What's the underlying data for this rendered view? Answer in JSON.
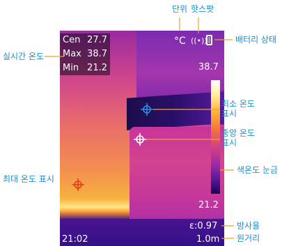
{
  "callouts": {
    "unit": "단위",
    "hotspot": "핫스팟",
    "battery": "배터리 상태",
    "realtime_temp": "실시간 온도",
    "min_temp_display": "최소 온도\n표시",
    "center_temp_display": "중앙 온도\n표시",
    "max_temp_display": "최대 온도 표시",
    "color_scale": "색온도 눈금",
    "emissivity": "방사율",
    "distance": "원거리"
  },
  "screen": {
    "readout": [
      {
        "label": "Cen",
        "value": "27.7"
      },
      {
        "label": "Max",
        "value": "38.7"
      },
      {
        "label": "Min",
        "value": "21.2"
      }
    ],
    "unit": "°C",
    "hotspot_symbol": "((•))",
    "scale_max": "38.7",
    "scale_min": "21.2",
    "emissivity": "ε:0.97",
    "distance": "1.0m",
    "time": "21:02"
  },
  "colors": {
    "callout_text": "#1c8fd0",
    "callout_line": "#f0a030",
    "min_cursor": "#2a8fe0",
    "center_cursor": "#ffffff",
    "max_cursor": "#e23a1a",
    "battery_fill": "#6cc04a"
  },
  "icons": [
    "min-temp-crosshair-icon",
    "center-crosshair-icon",
    "max-temp-crosshair-icon",
    "hotspot-icon",
    "battery-icon"
  ]
}
